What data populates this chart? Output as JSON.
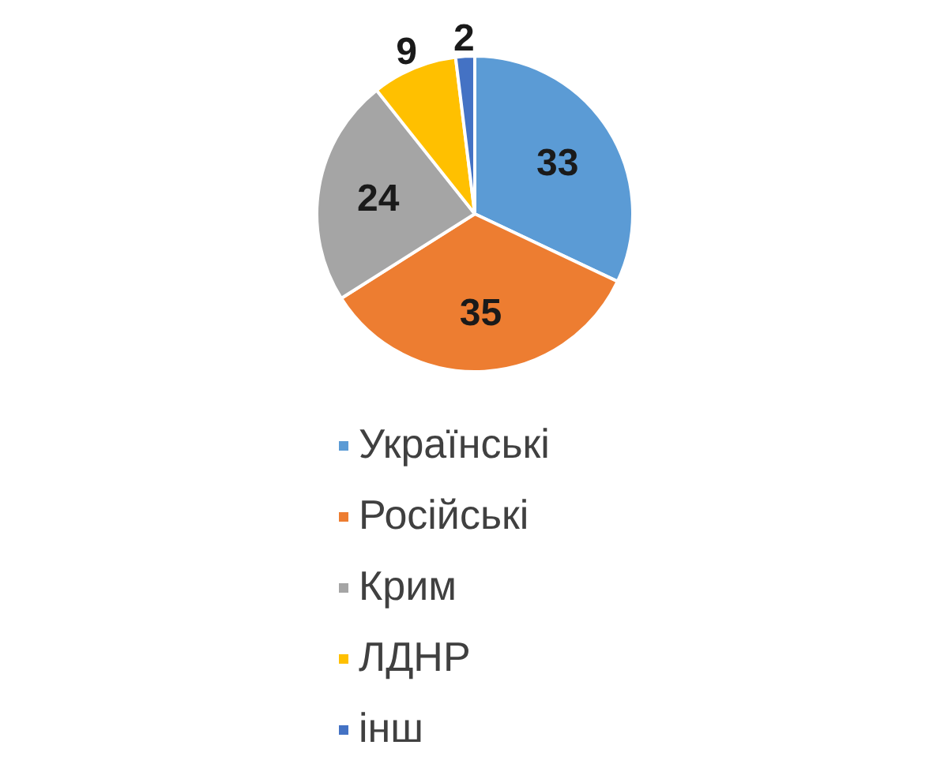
{
  "chart_data": {
    "type": "pie",
    "categories": [
      "Українські",
      "Російські",
      "Крим",
      "ЛДНР",
      "інш"
    ],
    "values": [
      33,
      35,
      24,
      9,
      2
    ],
    "colors": [
      "#5b9bd5",
      "#ed7d31",
      "#a5a5a5",
      "#ffc000",
      "#4472c4"
    ],
    "data_labels": true,
    "legend": "bottom"
  }
}
